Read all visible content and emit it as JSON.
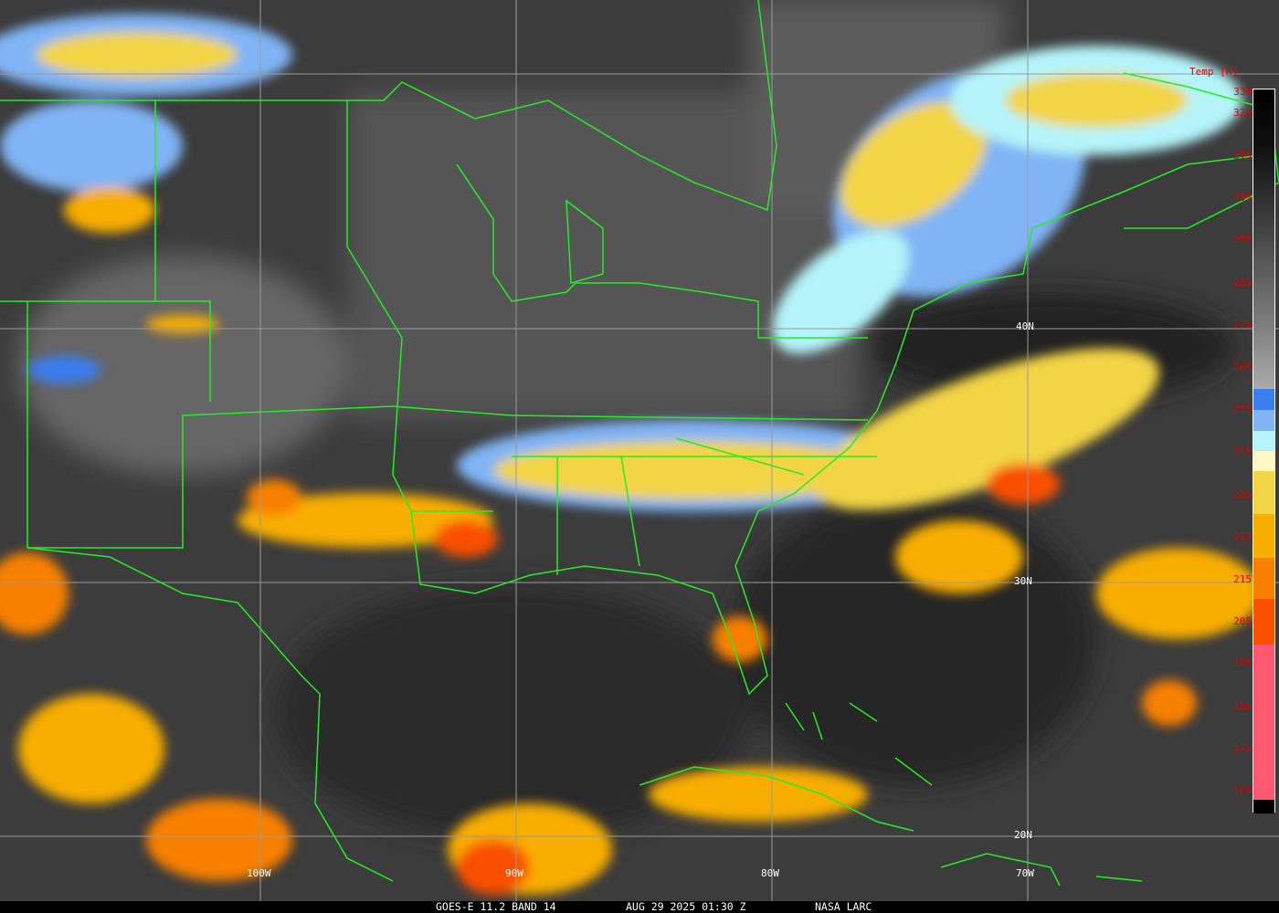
{
  "caption": {
    "satellite": "GOES-E 11.2 BAND 14",
    "datetime": "AUG 29 2025 01:30 Z",
    "source": "NASA LARC"
  },
  "grid_labels": {
    "lat": [
      "40N",
      "30N",
      "20N"
    ],
    "lon": [
      "100W",
      "90W",
      "80W",
      "70W"
    ]
  },
  "legend": {
    "title": "Temp [K]",
    "ticks": [
      "330",
      "325",
      "315",
      "305",
      "295",
      "285",
      "275",
      "265",
      "255",
      "245",
      "235",
      "225",
      "215",
      "205",
      "195",
      "185",
      "175",
      "165"
    ],
    "colors": {
      "cold_blue": "#3a7ef0",
      "light_blue": "#80b4f4",
      "cyan": "#b4f4fa",
      "cream": "#fff8c4",
      "yellow": "#f2d444",
      "amber": "#f8ae00",
      "orange": "#f88000",
      "red_orange": "#fa5000",
      "pink": "#ff5870",
      "border": "#22ee22"
    }
  }
}
